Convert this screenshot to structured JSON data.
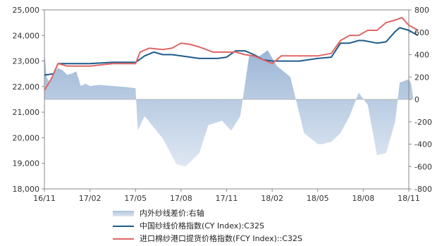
{
  "chart_data": {
    "type": "line",
    "x_ticks": [
      "16/11",
      "17/02",
      "17/05",
      "17/08",
      "17/11",
      "18/02",
      "18/05",
      "18/08",
      "18/11"
    ],
    "left_axis": {
      "ticks": [
        "25,000",
        "24,000",
        "23,000",
        "22,000",
        "21,000",
        "20,000",
        "19,000",
        "18,000"
      ],
      "range": [
        18000,
        25000
      ]
    },
    "right_axis": {
      "ticks": [
        "800",
        "600",
        "400",
        "200",
        "0",
        "-200",
        "-400",
        "-600",
        "-800"
      ],
      "range": [
        -800,
        800
      ]
    },
    "series": [
      {
        "name": "内外纱线差价:右轴",
        "type": "area",
        "axis": "right",
        "color": "#b9cce4",
        "x": [
          0,
          0.05,
          0.1,
          0.2,
          0.3,
          0.4,
          0.5,
          0.6,
          0.7,
          0.8,
          0.9,
          1,
          1.2,
          1.5,
          1.8,
          2.0,
          2.05,
          2.2,
          2.4,
          2.6,
          2.9,
          3.1,
          3.4,
          3.6,
          3.9,
          4.1,
          4.3,
          4.5,
          4.7,
          4.9,
          5.1,
          5.4,
          5.7,
          6.0,
          6.1,
          6.3,
          6.5,
          6.7,
          6.9,
          7.1,
          7.3,
          7.5,
          7.7,
          7.8,
          8.0,
          8.05,
          8.1,
          8.2
        ],
        "values": [
          420,
          200,
          160,
          230,
          280,
          260,
          220,
          230,
          250,
          120,
          140,
          120,
          130,
          120,
          110,
          100,
          -280,
          -150,
          -250,
          -350,
          -580,
          -600,
          -480,
          -230,
          -190,
          -280,
          -150,
          400,
          380,
          440,
          300,
          200,
          -300,
          -400,
          -400,
          -380,
          -300,
          -150,
          60,
          -50,
          -500,
          -480,
          -200,
          150,
          180,
          140,
          0,
          0
        ]
      },
      {
        "name": "中国纱线价格指数(CY Index):C32S",
        "type": "line",
        "axis": "left",
        "color": "#1f5c8a",
        "x": [
          0,
          0.2,
          0.3,
          0.5,
          1.0,
          1.5,
          2.0,
          2.2,
          2.4,
          2.6,
          2.8,
          3.0,
          3.4,
          3.8,
          4.0,
          4.2,
          4.4,
          4.6,
          4.8,
          5.0,
          5.2,
          5.6,
          6.0,
          6.3,
          6.5,
          6.7,
          6.9,
          7.0,
          7.3,
          7.5,
          7.7,
          7.8,
          8.0,
          8.2
        ],
        "values": [
          22450,
          22500,
          22900,
          22900,
          22900,
          22950,
          22950,
          23200,
          23350,
          23250,
          23250,
          23200,
          23100,
          23100,
          23150,
          23400,
          23400,
          23250,
          23050,
          23000,
          23000,
          23000,
          23100,
          23150,
          23700,
          23700,
          23800,
          23800,
          23700,
          23750,
          24150,
          24300,
          24200,
          24000
        ]
      },
      {
        "name": "进口棉纱港口提货价格指数(FCY Index)::C32S",
        "type": "line",
        "axis": "left",
        "color": "#e06666",
        "x": [
          0,
          0.15,
          0.3,
          0.5,
          1.0,
          1.5,
          2.0,
          2.1,
          2.3,
          2.6,
          2.8,
          3.0,
          3.2,
          3.4,
          3.7,
          4.0,
          4.2,
          4.4,
          4.6,
          4.8,
          5.0,
          5.2,
          5.5,
          6.0,
          6.3,
          6.5,
          6.7,
          6.9,
          7.1,
          7.3,
          7.5,
          7.7,
          7.85,
          8.0,
          8.2
        ],
        "values": [
          21850,
          22300,
          22900,
          22800,
          22800,
          22900,
          22900,
          23350,
          23500,
          23450,
          23500,
          23700,
          23650,
          23550,
          23350,
          23350,
          23350,
          23250,
          23200,
          23050,
          22900,
          23200,
          23200,
          23200,
          23300,
          23800,
          24000,
          24000,
          24200,
          24200,
          24500,
          24600,
          24700,
          24400,
          24200
        ]
      }
    ]
  }
}
